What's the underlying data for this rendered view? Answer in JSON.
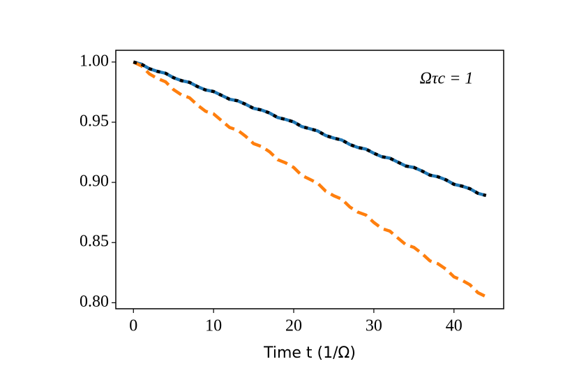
{
  "chart_data": {
    "type": "line",
    "xlabel": "Time t (1/Ω)",
    "annotation": "Ωτc = 1",
    "x": [
      0,
      1,
      2,
      3,
      4,
      5,
      6,
      7,
      8,
      9,
      10,
      11,
      12,
      13,
      14,
      15,
      16,
      17,
      18,
      19,
      20,
      21,
      22,
      23,
      24,
      25,
      26,
      27,
      28,
      29,
      30,
      31,
      32,
      33,
      34,
      35,
      36,
      37,
      38,
      39,
      40,
      41,
      42,
      43,
      44
    ],
    "series": [
      {
        "color": "#1f77b4",
        "style": "solid",
        "values": [
          1.0,
          0.9982,
          0.9944,
          0.9922,
          0.9907,
          0.987,
          0.9845,
          0.9831,
          0.9796,
          0.9768,
          0.9755,
          0.9723,
          0.9691,
          0.9678,
          0.9649,
          0.9615,
          0.9601,
          0.9576,
          0.9539,
          0.9523,
          0.9502,
          0.9464,
          0.9446,
          0.9427,
          0.9389,
          0.9368,
          0.9352,
          0.9315,
          0.929,
          0.9277,
          0.9242,
          0.9213,
          0.9201,
          0.9168,
          0.9136,
          0.9124,
          0.9095,
          0.906,
          0.9047,
          0.9021,
          0.8984,
          0.8969,
          0.8947,
          0.8909,
          0.8891
        ]
      },
      {
        "color": "#ff7f0e",
        "style": "dashed",
        "values": [
          1.0,
          0.9968,
          0.9901,
          0.9863,
          0.9836,
          0.9771,
          0.9727,
          0.9703,
          0.9642,
          0.9591,
          0.9569,
          0.9513,
          0.9456,
          0.9434,
          0.9383,
          0.9322,
          0.9298,
          0.9254,
          0.9189,
          0.9162,
          0.9124,
          0.9058,
          0.9026,
          0.8993,
          0.8927,
          0.8889,
          0.8861,
          0.8796,
          0.8753,
          0.8729,
          0.8667,
          0.8617,
          0.8595,
          0.8538,
          0.8482,
          0.846,
          0.8409,
          0.8348,
          0.8324,
          0.8279,
          0.8215,
          0.8187,
          0.8149,
          0.8083,
          0.8051
        ]
      },
      {
        "color": "#000000",
        "style": "dotted",
        "values": [
          1.0,
          0.9982,
          0.9944,
          0.9922,
          0.9907,
          0.987,
          0.9845,
          0.9831,
          0.9796,
          0.9768,
          0.9755,
          0.9723,
          0.9691,
          0.9678,
          0.9649,
          0.9615,
          0.9601,
          0.9576,
          0.9539,
          0.9523,
          0.9502,
          0.9464,
          0.9446,
          0.9427,
          0.9389,
          0.9368,
          0.9352,
          0.9315,
          0.929,
          0.9277,
          0.9242,
          0.9213,
          0.9201,
          0.9168,
          0.9136,
          0.9124,
          0.9095,
          0.906,
          0.9047,
          0.9021,
          0.8984,
          0.8969,
          0.8947,
          0.8909,
          0.8891
        ]
      }
    ],
    "xlim": [
      -2.2,
      46.2
    ],
    "xticks": [
      0,
      10,
      20,
      30,
      40
    ],
    "ylim": [
      0.795,
      1.00975
    ],
    "yticks": [
      {
        "value": 0.8,
        "label": "0.80"
      },
      {
        "value": 0.85,
        "label": "0.85"
      },
      {
        "value": 0.9,
        "label": "0.90"
      },
      {
        "value": 0.95,
        "label": "0.95"
      },
      {
        "value": 1.0,
        "label": "1.00"
      }
    ],
    "grid": false
  }
}
